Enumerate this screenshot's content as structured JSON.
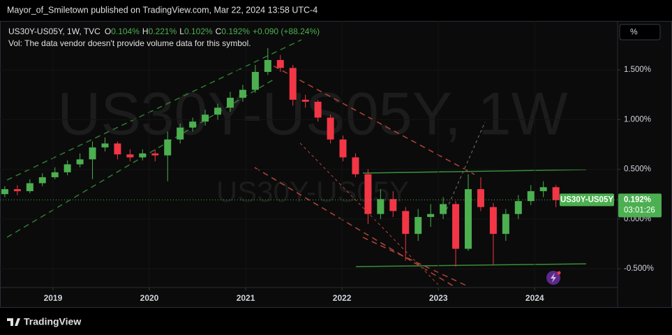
{
  "header": "Mayor_of_Smiletown published on TradingView.com, Mar 22, 2024 13:58 UTC-4",
  "footer": "TradingView",
  "chart_data": {
    "type": "candlestick",
    "symbol_line": "US30Y-US05Y, 1W, TVC",
    "legend": [
      {
        "key": "O",
        "value": "0.104%"
      },
      {
        "key": "H",
        "value": "0.221%"
      },
      {
        "key": "L",
        "value": "0.102%"
      },
      {
        "key": "C",
        "value": "0.192%"
      }
    ],
    "change": "+0.090 (+88.24%)",
    "volume_note": "Vol: The data vendor doesn't provide volume data for this symbol.",
    "watermark": "US30Y-US05Y, 1W",
    "watermark_small": "US30Y-US05Y",
    "unit_button": "%",
    "x": [
      2018.5,
      2018.63,
      2018.76,
      2018.89,
      2019.02,
      2019.15,
      2019.28,
      2019.41,
      2019.54,
      2019.67,
      2019.8,
      2019.93,
      2020.06,
      2020.19,
      2020.32,
      2020.45,
      2020.58,
      2020.71,
      2020.84,
      2020.97,
      2021.1,
      2021.23,
      2021.36,
      2021.49,
      2021.62,
      2021.75,
      2021.88,
      2022.01,
      2022.14,
      2022.27,
      2022.4,
      2022.53,
      2022.66,
      2022.79,
      2022.92,
      2023.05,
      2023.18,
      2023.31,
      2023.44,
      2023.57,
      2023.7,
      2023.83,
      2023.96,
      2024.09,
      2024.22
    ],
    "open": [
      0.25,
      0.3,
      0.28,
      0.36,
      0.42,
      0.47,
      0.55,
      0.6,
      0.72,
      0.76,
      0.65,
      0.62,
      0.66,
      0.64,
      0.8,
      0.92,
      0.98,
      1.05,
      1.12,
      1.22,
      1.3,
      1.48,
      1.6,
      1.52,
      1.2,
      1.18,
      1.02,
      0.8,
      0.62,
      0.45,
      0.05,
      0.2,
      0.08,
      -0.15,
      0.02,
      0.05,
      0.15,
      -0.3,
      0.3,
      0.12,
      -0.15,
      0.05,
      0.18,
      0.28,
      0.32
    ],
    "high": [
      0.33,
      0.34,
      0.4,
      0.46,
      0.52,
      0.59,
      0.66,
      0.78,
      0.82,
      0.78,
      0.7,
      0.7,
      0.7,
      0.88,
      0.96,
      1.02,
      1.1,
      1.16,
      1.28,
      1.35,
      1.55,
      1.72,
      1.65,
      1.55,
      1.25,
      1.2,
      1.05,
      0.84,
      0.66,
      0.5,
      0.3,
      0.28,
      0.12,
      0.1,
      0.15,
      0.22,
      0.18,
      0.45,
      0.42,
      0.16,
      0.1,
      0.24,
      0.34,
      0.38,
      0.34
    ],
    "low": [
      0.22,
      0.24,
      0.26,
      0.33,
      0.4,
      0.44,
      0.52,
      0.4,
      0.68,
      0.6,
      0.58,
      0.59,
      0.58,
      0.38,
      0.76,
      0.88,
      0.94,
      1.0,
      1.08,
      1.18,
      1.27,
      1.45,
      1.48,
      1.14,
      1.12,
      0.98,
      0.76,
      0.58,
      0.42,
      -0.05,
      0.0,
      0.02,
      -0.42,
      -0.22,
      -0.08,
      0.0,
      -0.48,
      -0.32,
      0.08,
      -0.46,
      -0.22,
      0.0,
      0.14,
      0.22,
      0.12
    ],
    "close": [
      0.3,
      0.28,
      0.36,
      0.42,
      0.47,
      0.55,
      0.6,
      0.72,
      0.76,
      0.65,
      0.62,
      0.66,
      0.64,
      0.8,
      0.92,
      0.98,
      1.05,
      1.12,
      1.22,
      1.3,
      1.48,
      1.6,
      1.52,
      1.2,
      1.18,
      1.02,
      0.8,
      0.62,
      0.45,
      0.05,
      0.2,
      0.08,
      -0.15,
      0.02,
      0.05,
      0.15,
      -0.3,
      0.3,
      0.12,
      -0.15,
      0.05,
      0.18,
      0.28,
      0.32,
      0.19
    ],
    "up_color": "#4caf50",
    "down_color": "#f23645",
    "xlim": [
      2018.45,
      2024.86
    ],
    "ylim": [
      -0.69,
      1.993
    ],
    "xticks": [
      2019,
      2020,
      2021,
      2022,
      2023,
      2024
    ],
    "yticks": [
      {
        "value": -0.5,
        "label": "-0.500%"
      },
      {
        "value": 0,
        "label": "0.000%"
      },
      {
        "value": 0.5,
        "label": "0.500%"
      },
      {
        "value": 1,
        "label": "1.000%"
      },
      {
        "value": 1.5,
        "label": "1.500%"
      }
    ],
    "price_label": {
      "symbol": "US30Y-US05Y",
      "value": 0.192,
      "label": "0.192%",
      "countdown": "03:01:26"
    }
  }
}
